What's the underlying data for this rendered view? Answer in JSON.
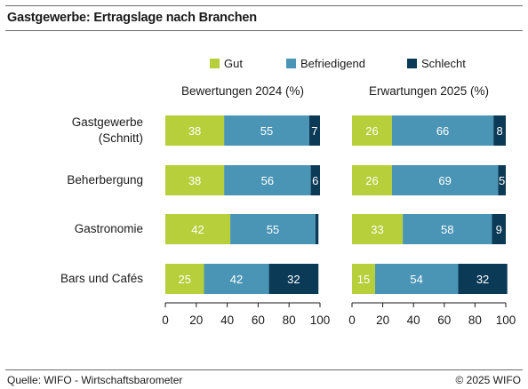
{
  "header": {
    "title": "Gastgewerbe: Ertragslage nach Branchen"
  },
  "footer": {
    "source": "Quelle: WIFO - Wirtschaftsbarometer",
    "copyright": "© 2025 WIFO"
  },
  "colors": {
    "gut": "#b6cf3a",
    "befriedigend": "#4a95b6",
    "schlecht": "#0b3a57"
  },
  "chart_data": [
    {
      "type": "bar",
      "orientation": "horizontal",
      "stacked": true,
      "title": "Bewertungen 2024 (%)",
      "categories": [
        "Gastgewerbe (Schnitt)",
        "Beherbergung",
        "Gastronomie",
        "Bars und Cafés"
      ],
      "category_lines": [
        [
          "Gastgewerbe",
          "(Schnitt)"
        ],
        [
          "Beherbergung"
        ],
        [
          "Gastronomie"
        ],
        [
          "Bars und Cafés"
        ]
      ],
      "series": [
        {
          "name": "Gut",
          "values": [
            38,
            38,
            42,
            25
          ]
        },
        {
          "name": "Befriedigend",
          "values": [
            55,
            56,
            55,
            42
          ]
        },
        {
          "name": "Schlecht",
          "values": [
            7,
            6,
            2,
            32
          ]
        }
      ],
      "value_labels": [
        [
          "38",
          "55",
          "7"
        ],
        [
          "38",
          "56",
          "6"
        ],
        [
          "42",
          "55",
          ""
        ],
        [
          "25",
          "42",
          "32"
        ]
      ],
      "xlim": [
        0,
        100
      ],
      "xticks": [
        0,
        20,
        40,
        60,
        80,
        100
      ],
      "grid": false,
      "legend": "top"
    },
    {
      "type": "bar",
      "orientation": "horizontal",
      "stacked": true,
      "title": "Erwartungen 2025 (%)",
      "categories": [
        "Gastgewerbe (Schnitt)",
        "Beherbergung",
        "Gastronomie",
        "Bars und Cafés"
      ],
      "series": [
        {
          "name": "Gut",
          "values": [
            26,
            26,
            33,
            15
          ]
        },
        {
          "name": "Befriedigend",
          "values": [
            66,
            69,
            58,
            54
          ]
        },
        {
          "name": "Schlecht",
          "values": [
            8,
            5,
            9,
            32
          ]
        }
      ],
      "value_labels": [
        [
          "26",
          "66",
          "8"
        ],
        [
          "26",
          "69",
          "5"
        ],
        [
          "33",
          "58",
          "9"
        ],
        [
          "15",
          "54",
          "32"
        ]
      ],
      "xlim": [
        0,
        100
      ],
      "xticks": [
        0,
        20,
        40,
        60,
        80,
        100
      ],
      "grid": false,
      "legend": "top"
    }
  ]
}
